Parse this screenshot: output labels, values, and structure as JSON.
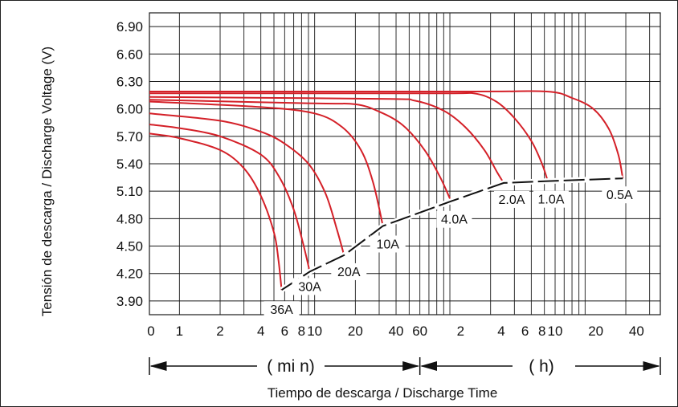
{
  "chart_data": {
    "type": "line",
    "title": "",
    "ylabel": "Tensión de descarga / Discharge Voltage (V)",
    "xlabel": "Tiempo de descarga / Discharge Time",
    "yticks": [
      "6.90",
      "6.60",
      "6.30",
      "6.00",
      "5.70",
      "5.40",
      "5.10",
      "4.80",
      "4.50",
      "4.20",
      "3.90"
    ],
    "ylim": [
      3.75,
      7.05
    ],
    "x_scale": "log",
    "xlim_minutes": [
      0.6,
      3600
    ],
    "xticks": [
      {
        "label": "0",
        "minutes": 0.6
      },
      {
        "label": "1",
        "minutes": 1
      },
      {
        "label": "2",
        "minutes": 2
      },
      {
        "label": "4",
        "minutes": 4
      },
      {
        "label": "6",
        "minutes": 6
      },
      {
        "label": "8",
        "minutes": 8
      },
      {
        "label": "10",
        "minutes": 10
      },
      {
        "label": "20",
        "minutes": 20
      },
      {
        "label": "40",
        "minutes": 40
      },
      {
        "label": "60",
        "minutes": 60
      },
      {
        "label": "2",
        "minutes": 120
      },
      {
        "label": "4",
        "minutes": 240
      },
      {
        "label": "6",
        "minutes": 360
      },
      {
        "label": "8",
        "minutes": 480
      },
      {
        "label": "10",
        "minutes": 600
      },
      {
        "label": "20",
        "minutes": 1200
      },
      {
        "label": "40",
        "minutes": 2400
      }
    ],
    "grid": true,
    "unit_labels": {
      "min": "( mi n)",
      "h": "( h)"
    },
    "series": [
      {
        "name": "36A",
        "points": [
          [
            0.6,
            5.73
          ],
          [
            1,
            5.68
          ],
          [
            2,
            5.55
          ],
          [
            3,
            5.35
          ],
          [
            4,
            5.05
          ],
          [
            5,
            4.65
          ],
          [
            5.4,
            4.35
          ],
          [
            5.7,
            4.02
          ]
        ]
      },
      {
        "name": "30A",
        "points": [
          [
            0.6,
            5.83
          ],
          [
            1,
            5.79
          ],
          [
            2,
            5.7
          ],
          [
            4,
            5.5
          ],
          [
            5.5,
            5.25
          ],
          [
            7,
            4.9
          ],
          [
            8.3,
            4.5
          ],
          [
            9.2,
            4.22
          ]
        ]
      },
      {
        "name": "20A",
        "points": [
          [
            0.6,
            5.95
          ],
          [
            2,
            5.87
          ],
          [
            4,
            5.75
          ],
          [
            6,
            5.62
          ],
          [
            9,
            5.4
          ],
          [
            12,
            5.08
          ],
          [
            14.5,
            4.7
          ],
          [
            16.5,
            4.4
          ]
        ]
      },
      {
        "name": "10A",
        "points": [
          [
            0.6,
            6.08
          ],
          [
            4,
            6.02
          ],
          [
            10,
            5.95
          ],
          [
            16,
            5.8
          ],
          [
            22,
            5.55
          ],
          [
            27,
            5.2
          ],
          [
            32,
            4.72
          ]
        ]
      },
      {
        "name": "4.0A",
        "points": [
          [
            0.6,
            6.1
          ],
          [
            10,
            6.06
          ],
          [
            20,
            6.05
          ],
          [
            30,
            5.97
          ],
          [
            45,
            5.82
          ],
          [
            65,
            5.55
          ],
          [
            85,
            5.25
          ],
          [
            102,
            4.99
          ]
        ]
      },
      {
        "name": "2.0A",
        "points": [
          [
            0.6,
            6.13
          ],
          [
            30,
            6.11
          ],
          [
            55,
            6.09
          ],
          [
            90,
            5.98
          ],
          [
            130,
            5.8
          ],
          [
            180,
            5.55
          ],
          [
            225,
            5.3
          ],
          [
            250,
            5.19
          ]
        ]
      },
      {
        "name": "1.0A",
        "points": [
          [
            0.6,
            6.17
          ],
          [
            80,
            6.17
          ],
          [
            150,
            6.17
          ],
          [
            220,
            6.08
          ],
          [
            300,
            5.9
          ],
          [
            400,
            5.65
          ],
          [
            480,
            5.4
          ],
          [
            530,
            5.21
          ]
        ]
      },
      {
        "name": "0.5A",
        "points": [
          [
            0.6,
            6.19
          ],
          [
            150,
            6.19
          ],
          [
            520,
            6.19
          ],
          [
            800,
            6.12
          ],
          [
            1150,
            6.0
          ],
          [
            1500,
            5.78
          ],
          [
            1760,
            5.5
          ],
          [
            1900,
            5.24
          ]
        ]
      }
    ],
    "end_voltage_points": [
      [
        5.7,
        4.02
      ],
      [
        9.2,
        4.22
      ],
      [
        16.5,
        4.4
      ],
      [
        32,
        4.72
      ],
      [
        102,
        4.99
      ],
      [
        250,
        5.19
      ],
      [
        530,
        5.21
      ],
      [
        1900,
        5.24
      ]
    ],
    "colors": {
      "series": "#d42028",
      "grid": "#1a1a1a",
      "endline": "#111111"
    }
  }
}
